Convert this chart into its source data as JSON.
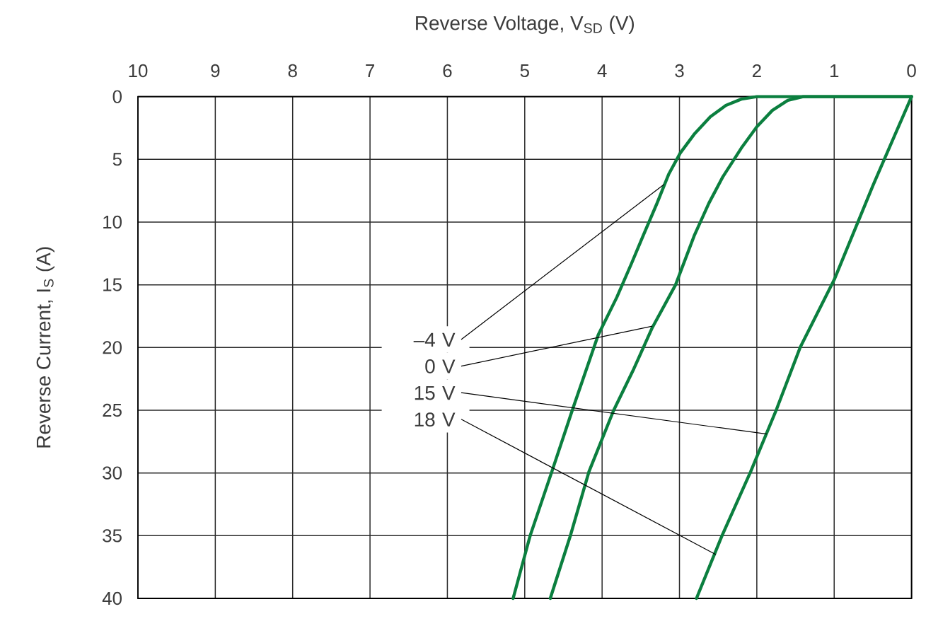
{
  "chart_data": {
    "type": "line",
    "xlabel": "Reverse Voltage, V$_{SD}$ (V)",
    "ylabel": "Reverse Current, I$_{S}$ (A)",
    "xlim": [
      10,
      0
    ],
    "xticks": [
      0,
      1,
      2,
      3,
      4,
      5,
      6,
      7,
      8,
      9,
      10
    ],
    "ylim": [
      40,
      0
    ],
    "yticks": [
      0,
      5,
      10,
      15,
      20,
      25,
      30,
      35,
      40
    ],
    "grid": true,
    "series": [
      {
        "color": "#0b7f3f",
        "x": [
          0,
          2.0,
          2.2,
          2.4,
          2.6,
          2.81,
          2.99,
          3.14,
          3.29,
          3.47,
          3.62,
          3.81,
          4.05,
          4.38,
          4.65,
          4.93,
          5.15
        ],
        "values": [
          0,
          0,
          0.2,
          0.7,
          1.6,
          3.0,
          4.5,
          6.2,
          8.5,
          11.1,
          13.3,
          16.0,
          19.0,
          24.9,
          29.9,
          35.0,
          40
        ]
      },
      {
        "color": "#0b7f3f",
        "x": [
          0,
          1.4,
          1.6,
          1.8,
          2.0,
          2.2,
          2.44,
          2.62,
          2.81,
          3.05,
          3.35,
          3.59,
          3.85,
          4.17,
          4.41,
          4.67
        ],
        "values": [
          0,
          0,
          0.3,
          1.1,
          2.4,
          4.1,
          6.4,
          8.5,
          11.1,
          15.0,
          18.4,
          21.7,
          25.0,
          29.9,
          35.0,
          40
        ]
      },
      {
        "color": "#0b7f3f",
        "x": [
          0,
          0.5,
          1.0,
          1.44,
          1.75,
          2.08,
          2.45,
          2.78
        ],
        "values": [
          0,
          7.1,
          14.6,
          20.0,
          25.0,
          29.9,
          35.0,
          40
        ]
      }
    ],
    "annotations": [
      {
        "text": "–4 V",
        "x": 3.2,
        "y": 7.0
      },
      {
        "text": "0 V",
        "x": 3.35,
        "y": 18.3
      },
      {
        "text": "15 V",
        "x": 1.87,
        "y": 26.9
      },
      {
        "text": "18 V",
        "x": 2.53,
        "y": 36.5
      }
    ]
  }
}
